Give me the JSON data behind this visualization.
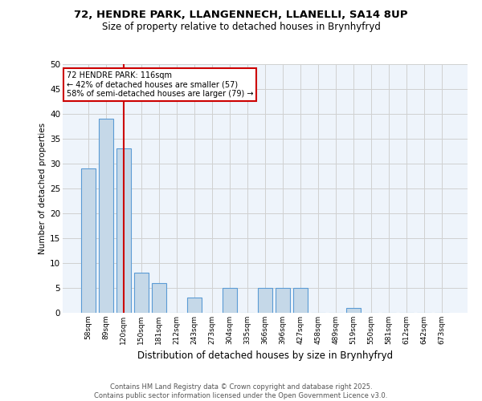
{
  "title_line1": "72, HENDRE PARK, LLANGENNECH, LLANELLI, SA14 8UP",
  "title_line2": "Size of property relative to detached houses in Brynhyfryd",
  "xlabel": "Distribution of detached houses by size in Brynhyfryd",
  "ylabel": "Number of detached properties",
  "bar_values": [
    29,
    39,
    33,
    8,
    6,
    0,
    3,
    0,
    5,
    0,
    5,
    5,
    5,
    0,
    0,
    1,
    0,
    0,
    0,
    0,
    0
  ],
  "categories": [
    "58sqm",
    "89sqm",
    "120sqm",
    "150sqm",
    "181sqm",
    "212sqm",
    "243sqm",
    "273sqm",
    "304sqm",
    "335sqm",
    "366sqm",
    "396sqm",
    "427sqm",
    "458sqm",
    "489sqm",
    "519sqm",
    "550sqm",
    "581sqm",
    "612sqm",
    "642sqm",
    "673sqm"
  ],
  "bar_color": "#c5d8e8",
  "bar_edge_color": "#5b9bd5",
  "grid_color": "#d0d0d0",
  "background_color": "#eef4fb",
  "red_line_index": 2,
  "annotation_text": "72 HENDRE PARK: 116sqm\n← 42% of detached houses are smaller (57)\n58% of semi-detached houses are larger (79) →",
  "annotation_box_color": "#ffffff",
  "annotation_box_edge": "#cc0000",
  "footer_line1": "Contains HM Land Registry data © Crown copyright and database right 2025.",
  "footer_line2": "Contains public sector information licensed under the Open Government Licence v3.0.",
  "ylim": [
    0,
    50
  ],
  "yticks": [
    0,
    5,
    10,
    15,
    20,
    25,
    30,
    35,
    40,
    45,
    50
  ]
}
